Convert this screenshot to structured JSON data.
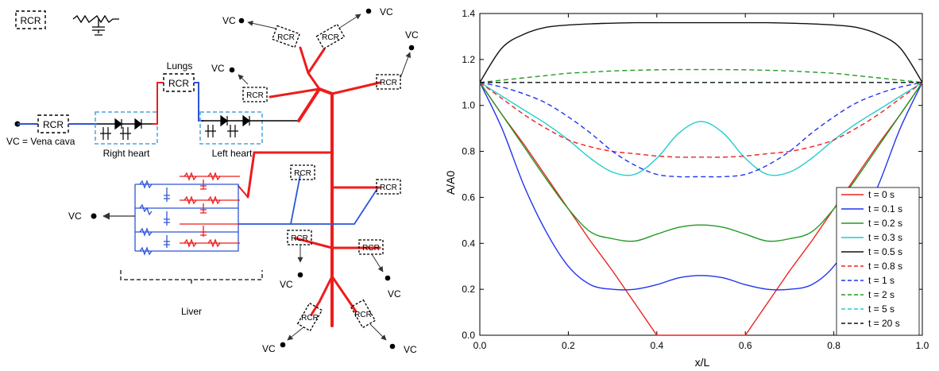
{
  "diagram": {
    "legend_rcr": "RCR",
    "rcr": "RCR",
    "vc": "VC",
    "vc_def": "VC = Vena cava",
    "lungs": "Lungs",
    "right_heart": "Right heart",
    "left_heart": "Left heart",
    "liver": "Liver",
    "colors": {
      "artery": "#ee1c1c",
      "vein": "#2d55d6",
      "heart": "#4aa3df",
      "wire": "#000000"
    }
  },
  "chart_data": {
    "type": "line",
    "xlabel": "x/L",
    "ylabel": "A/A0",
    "xlim": [
      0.0,
      1.0
    ],
    "ylim": [
      0.0,
      1.4
    ],
    "xticks": [
      "0.0",
      "0.2",
      "0.4",
      "0.6",
      "0.8",
      "1.0"
    ],
    "yticks": [
      "0.0",
      "0.2",
      "0.4",
      "0.6",
      "0.8",
      "1.0",
      "1.2",
      "1.4"
    ],
    "grid": false,
    "legend_position": "bottom-right",
    "x": [
      0,
      0.05,
      0.1,
      0.15,
      0.2,
      0.25,
      0.3,
      0.35,
      0.4,
      0.45,
      0.5,
      0.55,
      0.6,
      0.65,
      0.7,
      0.75,
      0.8,
      0.85,
      0.9,
      0.95,
      1.0
    ],
    "series": [
      {
        "name": "t = 0 s",
        "color": "#ee2222",
        "dash": false,
        "values": [
          1.1,
          0.96,
          0.83,
          0.69,
          0.55,
          0.41,
          0.28,
          0.14,
          0.0,
          0.0,
          0.0,
          0.0,
          0.0,
          0.14,
          0.28,
          0.41,
          0.55,
          0.69,
          0.83,
          0.96,
          1.1
        ]
      },
      {
        "name": "t = 0.1 s",
        "color": "#2233ee",
        "dash": false,
        "values": [
          1.1,
          0.9,
          0.65,
          0.45,
          0.3,
          0.22,
          0.2,
          0.2,
          0.22,
          0.25,
          0.26,
          0.25,
          0.22,
          0.2,
          0.2,
          0.22,
          0.3,
          0.45,
          0.65,
          0.9,
          1.1
        ]
      },
      {
        "name": "t = 0.2 s",
        "color": "#229922",
        "dash": false,
        "values": [
          1.1,
          0.96,
          0.82,
          0.68,
          0.55,
          0.45,
          0.42,
          0.41,
          0.44,
          0.47,
          0.48,
          0.47,
          0.44,
          0.41,
          0.42,
          0.45,
          0.55,
          0.68,
          0.82,
          0.96,
          1.1
        ]
      },
      {
        "name": "t = 0.3 s",
        "color": "#22cccc",
        "dash": false,
        "values": [
          1.1,
          1.04,
          0.98,
          0.92,
          0.85,
          0.77,
          0.71,
          0.7,
          0.77,
          0.88,
          0.93,
          0.88,
          0.77,
          0.7,
          0.71,
          0.77,
          0.85,
          0.92,
          0.98,
          1.04,
          1.1
        ]
      },
      {
        "name": "t = 0.5 s",
        "color": "#111111",
        "dash": false,
        "values": [
          1.1,
          1.25,
          1.31,
          1.34,
          1.35,
          1.355,
          1.358,
          1.36,
          1.36,
          1.36,
          1.36,
          1.36,
          1.36,
          1.36,
          1.358,
          1.355,
          1.35,
          1.34,
          1.31,
          1.25,
          1.1
        ]
      },
      {
        "name": "t = 0.8 s",
        "color": "#ee2222",
        "dash": true,
        "values": [
          1.1,
          1.03,
          0.96,
          0.9,
          0.85,
          0.82,
          0.8,
          0.79,
          0.78,
          0.775,
          0.775,
          0.775,
          0.78,
          0.79,
          0.8,
          0.82,
          0.85,
          0.9,
          0.96,
          1.03,
          1.1
        ]
      },
      {
        "name": "t = 1 s",
        "color": "#2233ee",
        "dash": true,
        "values": [
          1.1,
          1.08,
          1.05,
          1.01,
          0.95,
          0.88,
          0.8,
          0.74,
          0.7,
          0.69,
          0.69,
          0.69,
          0.7,
          0.74,
          0.8,
          0.88,
          0.95,
          1.01,
          1.05,
          1.08,
          1.1
        ]
      },
      {
        "name": "t = 2 s",
        "color": "#229922",
        "dash": true,
        "values": [
          1.1,
          1.11,
          1.12,
          1.13,
          1.14,
          1.145,
          1.15,
          1.153,
          1.155,
          1.156,
          1.156,
          1.156,
          1.155,
          1.153,
          1.15,
          1.145,
          1.14,
          1.13,
          1.12,
          1.11,
          1.1
        ]
      },
      {
        "name": "t = 5 s",
        "color": "#22cccc",
        "dash": true,
        "values": [
          1.1,
          1.1,
          1.1,
          1.1,
          1.1,
          1.1,
          1.1,
          1.1,
          1.1,
          1.1,
          1.1,
          1.1,
          1.1,
          1.1,
          1.1,
          1.1,
          1.1,
          1.1,
          1.1,
          1.1,
          1.1
        ]
      },
      {
        "name": "t = 20 s",
        "color": "#111111",
        "dash": true,
        "values": [
          1.1,
          1.1,
          1.1,
          1.1,
          1.1,
          1.1,
          1.1,
          1.1,
          1.1,
          1.1,
          1.1,
          1.1,
          1.1,
          1.1,
          1.1,
          1.1,
          1.1,
          1.1,
          1.1,
          1.1,
          1.1
        ]
      }
    ]
  }
}
